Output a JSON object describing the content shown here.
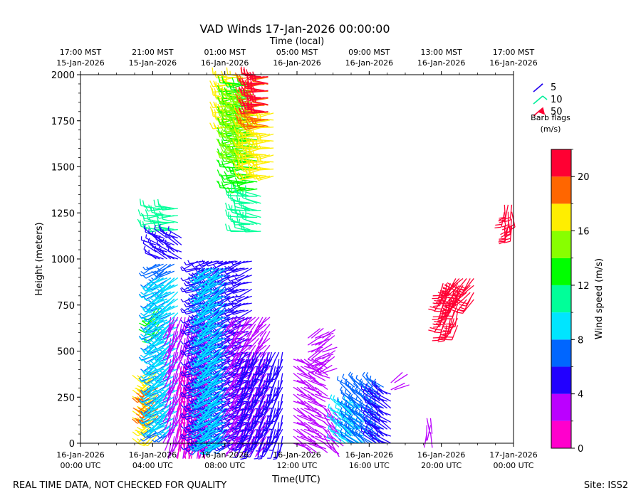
{
  "chart_data": {
    "type": "wind-barb-time-height",
    "title": "VAD Winds 17-Jan-2026 00:00:00",
    "xlabel": "Time(UTC)",
    "ylabel": "Height (meters)",
    "top_axis_title": "Time (local)",
    "footer_left": "REAL TIME DATA, NOT CHECKED FOR QUALITY",
    "footer_right": "Site: ISS2",
    "x_range_hours_utc": [
      0,
      24
    ],
    "ylim": [
      0,
      2000
    ],
    "y_ticks": [
      "0",
      "250",
      "500",
      "750",
      "1000",
      "1250",
      "1500",
      "1750",
      "2000"
    ],
    "x_ticks": [
      {
        "hour": 0,
        "line1": "16-Jan-2026",
        "line2": "00:00 UTC"
      },
      {
        "hour": 4,
        "line1": "16-Jan-2026",
        "line2": "04:00 UTC"
      },
      {
        "hour": 8,
        "line1": "16-Jan-2026",
        "line2": "08:00 UTC"
      },
      {
        "hour": 12,
        "line1": "16-Jan-2026",
        "line2": "12:00 UTC"
      },
      {
        "hour": 16,
        "line1": "16-Jan-2026",
        "line2": "16:00 UTC"
      },
      {
        "hour": 20,
        "line1": "16-Jan-2026",
        "line2": "20:00 UTC"
      },
      {
        "hour": 24,
        "line1": "17-Jan-2026",
        "line2": "00:00 UTC"
      }
    ],
    "top_ticks": [
      {
        "hour": 0,
        "line1": "17:00 MST",
        "line2": "15-Jan-2026"
      },
      {
        "hour": 4,
        "line1": "21:00 MST",
        "line2": "15-Jan-2026"
      },
      {
        "hour": 8,
        "line1": "01:00 MST",
        "line2": "16-Jan-2026"
      },
      {
        "hour": 12,
        "line1": "05:00 MST",
        "line2": "16-Jan-2026"
      },
      {
        "hour": 16,
        "line1": "09:00 MST",
        "line2": "16-Jan-2026"
      },
      {
        "hour": 20,
        "line1": "13:00 MST",
        "line2": "16-Jan-2026"
      },
      {
        "hour": 24,
        "line1": "17:00 MST",
        "line2": "16-Jan-2026"
      }
    ],
    "legend": {
      "title_line1": "Barb flags",
      "title_line2": "(m/s)",
      "entries": [
        {
          "label": "5",
          "color": "#2200ee"
        },
        {
          "label": "10",
          "color": "#00ee99"
        },
        {
          "label": "50",
          "color": "#ff0033"
        }
      ]
    },
    "colorbar": {
      "label": "Wind speed (m/s)",
      "min": 0,
      "max": 22,
      "ticks": [
        "0",
        "4",
        "8",
        "12",
        "16",
        "20"
      ],
      "bins": [
        {
          "from": 0,
          "to": 2,
          "color": "#ff00cc"
        },
        {
          "from": 2,
          "to": 4,
          "color": "#bb00ff"
        },
        {
          "from": 4,
          "to": 6,
          "color": "#2200ff"
        },
        {
          "from": 6,
          "to": 8,
          "color": "#0066ff"
        },
        {
          "from": 8,
          "to": 10,
          "color": "#00e5ff"
        },
        {
          "from": 10,
          "to": 12,
          "color": "#00ff99"
        },
        {
          "from": 12,
          "to": 14,
          "color": "#00ff00"
        },
        {
          "from": 14,
          "to": 16,
          "color": "#88ff00"
        },
        {
          "from": 16,
          "to": 18,
          "color": "#ffee00"
        },
        {
          "from": 18,
          "to": 20,
          "color": "#ff6600"
        },
        {
          "from": 20,
          "to": 22,
          "color": "#ff0033"
        }
      ]
    },
    "barb_groups": [
      {
        "t0": 3.9,
        "t1": 4.4,
        "z0": 50,
        "z1": 420,
        "speed": 17,
        "dir": 230
      },
      {
        "t0": 3.9,
        "t1": 4.4,
        "z0": 150,
        "z1": 330,
        "speed": 19,
        "dir": 230
      },
      {
        "t0": 4.2,
        "t1": 4.5,
        "z0": 620,
        "z1": 760,
        "speed": 13,
        "dir": 220
      },
      {
        "t0": 4.2,
        "t1": 5.2,
        "z0": 60,
        "z1": 980,
        "speed": 7,
        "dir": 240
      },
      {
        "t0": 4.2,
        "t1": 5.4,
        "z0": 100,
        "z1": 900,
        "speed": 9,
        "dir": 235
      },
      {
        "t0": 4.2,
        "t1": 5.4,
        "z0": 1160,
        "z1": 1300,
        "speed": 11,
        "dir": 270
      },
      {
        "t0": 4.2,
        "t1": 5.6,
        "z0": 1000,
        "z1": 1140,
        "speed": 5,
        "dir": 300
      },
      {
        "t0": 5.0,
        "t1": 7.2,
        "z0": 0,
        "z1": 700,
        "speed": 3,
        "dir": 200
      },
      {
        "t0": 5.5,
        "t1": 7.0,
        "z0": 0,
        "z1": 450,
        "speed": 1,
        "dir": 180
      },
      {
        "t0": 6.5,
        "t1": 9.5,
        "z0": 0,
        "z1": 1000,
        "speed": 5,
        "dir": 250
      },
      {
        "t0": 6.8,
        "t1": 8.3,
        "z0": 0,
        "z1": 980,
        "speed": 7,
        "dir": 230
      },
      {
        "t0": 7.0,
        "t1": 8.0,
        "z0": 0,
        "z1": 960,
        "speed": 9,
        "dir": 235
      },
      {
        "t0": 8.5,
        "t1": 10.6,
        "z0": 0,
        "z1": 700,
        "speed": 3,
        "dir": 220
      },
      {
        "t0": 9.0,
        "t1": 11.2,
        "z0": 0,
        "z1": 500,
        "speed": 5,
        "dir": 200
      },
      {
        "t0": 8.2,
        "t1": 9.0,
        "z0": 1720,
        "z1": 2000,
        "speed": 17,
        "dir": 270
      },
      {
        "t0": 8.6,
        "t1": 9.9,
        "z0": 1380,
        "z1": 1960,
        "speed": 13,
        "dir": 265
      },
      {
        "t0": 8.6,
        "t1": 9.6,
        "z0": 1550,
        "z1": 1900,
        "speed": 15,
        "dir": 260
      },
      {
        "t0": 9.0,
        "t1": 10.0,
        "z0": 1150,
        "z1": 1350,
        "speed": 11,
        "dir": 280
      },
      {
        "t0": 9.5,
        "t1": 10.8,
        "z0": 1450,
        "z1": 1800,
        "speed": 17,
        "dir": 265
      },
      {
        "t0": 9.6,
        "t1": 10.4,
        "z0": 1720,
        "z1": 2000,
        "speed": 19,
        "dir": 270
      },
      {
        "t0": 9.8,
        "t1": 10.4,
        "z0": 1800,
        "z1": 2000,
        "speed": 21,
        "dir": 270
      },
      {
        "t0": 11.8,
        "t1": 13.0,
        "z0": 0,
        "z1": 470,
        "speed": 3,
        "dir": 120
      },
      {
        "t0": 12.6,
        "t1": 13.4,
        "z0": 380,
        "z1": 590,
        "speed": 3,
        "dir": 60
      },
      {
        "t0": 13.5,
        "t1": 14.0,
        "z0": 0,
        "z1": 220,
        "speed": 3,
        "dir": 140
      },
      {
        "t0": 14.5,
        "t1": 15.8,
        "z0": 0,
        "z1": 200,
        "speed": 9,
        "dir": 300
      },
      {
        "t0": 15.0,
        "t1": 16.8,
        "z0": 0,
        "z1": 310,
        "speed": 7,
        "dir": 310
      },
      {
        "t0": 16.4,
        "t1": 17.2,
        "z0": 0,
        "z1": 300,
        "speed": 5,
        "dir": 300
      },
      {
        "t0": 17.2,
        "t1": 17.4,
        "z0": 290,
        "z1": 350,
        "speed": 3,
        "dir": 60
      },
      {
        "t0": 19.2,
        "t1": 19.4,
        "z0": 60,
        "z1": 150,
        "speed": 3,
        "dir": 180
      },
      {
        "t0": 20.1,
        "t1": 20.9,
        "z0": 640,
        "z1": 890,
        "speed": 21,
        "dir": 200
      },
      {
        "t0": 20.8,
        "t1": 21.8,
        "z0": 780,
        "z1": 930,
        "speed": 21,
        "dir": 220
      },
      {
        "t0": 23.5,
        "t1": 23.9,
        "z0": 1180,
        "z1": 1320,
        "speed": 21,
        "dir": 180
      }
    ]
  }
}
